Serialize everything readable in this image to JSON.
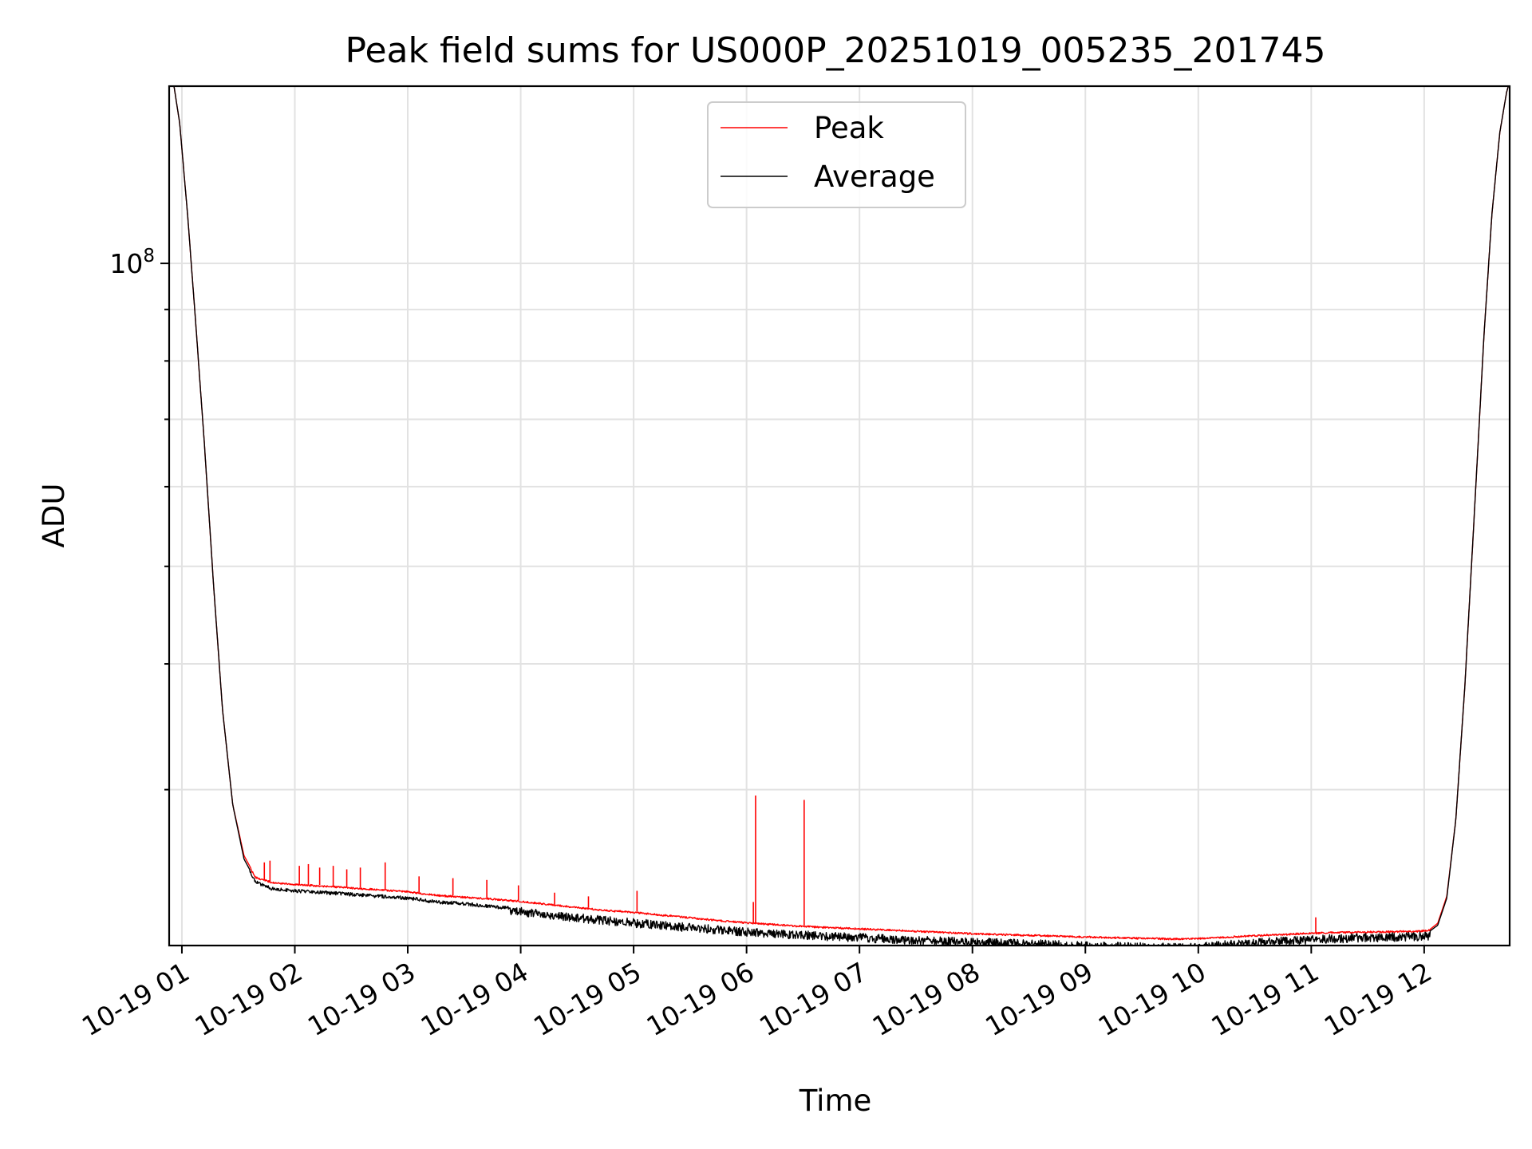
{
  "chart_data": {
    "type": "line",
    "title": "Peak field sums for US000P_20251019_005235_201745",
    "xlabel": "Time",
    "ylabel": "ADU",
    "yscale": "log",
    "ylim": [
      21000000,
      150000000
    ],
    "yticks": [
      {
        "value": 100000000,
        "base": "10",
        "exp": "8"
      }
    ],
    "yminor": [
      20000000,
      30000000,
      40000000,
      50000000,
      60000000,
      70000000,
      80000000,
      90000000
    ],
    "xlim": [
      0.8873,
      12.7569
    ],
    "xticks": [
      {
        "value": 1,
        "label": "10-19 01"
      },
      {
        "value": 2,
        "label": "10-19 02"
      },
      {
        "value": 3,
        "label": "10-19 03"
      },
      {
        "value": 4,
        "label": "10-19 04"
      },
      {
        "value": 5,
        "label": "10-19 05"
      },
      {
        "value": 6,
        "label": "10-19 06"
      },
      {
        "value": 7,
        "label": "10-19 07"
      },
      {
        "value": 8,
        "label": "10-19 08"
      },
      {
        "value": 9,
        "label": "10-19 09"
      },
      {
        "value": 10,
        "label": "10-19 10"
      },
      {
        "value": 11,
        "label": "10-19 11"
      },
      {
        "value": 12,
        "label": "10-19 12"
      }
    ],
    "grid": true,
    "legend": {
      "position": "top-center"
    },
    "series": [
      {
        "name": "Peak",
        "color": "#ff0000",
        "x": [
          0.89,
          0.93,
          0.98,
          1.05,
          1.12,
          1.2,
          1.28,
          1.36,
          1.45,
          1.55,
          1.65,
          1.8,
          2.0,
          2.25,
          2.5,
          2.75,
          3.0,
          3.25,
          3.5,
          3.75,
          3.95,
          4.2,
          4.5,
          4.75,
          5.0,
          5.25,
          5.5,
          5.75,
          6.0,
          6.25,
          6.5,
          6.75,
          7.0,
          7.25,
          7.5,
          7.75,
          8.0,
          8.25,
          8.5,
          8.75,
          9.0,
          9.25,
          9.5,
          9.75,
          9.85,
          10.0,
          10.25,
          10.5,
          10.75,
          11.0,
          11.25,
          11.5,
          11.75,
          11.95,
          12.05,
          12.12,
          12.2,
          12.28,
          12.36,
          12.45,
          12.53,
          12.6,
          12.67,
          12.73,
          12.76
        ],
        "y": [
          152000000,
          150000000,
          138000000,
          112000000,
          88000000,
          66000000,
          48000000,
          36000000,
          29000000,
          25800000,
          24600000,
          24300000,
          24200000,
          24100000,
          24000000,
          23900000,
          23800000,
          23600000,
          23500000,
          23400000,
          23300000,
          23150000,
          22950000,
          22800000,
          22700000,
          22560000,
          22420000,
          22280000,
          22160000,
          22070000,
          21980000,
          21920000,
          21860000,
          21800000,
          21740000,
          21680000,
          21620000,
          21580000,
          21540000,
          21500000,
          21460000,
          21420000,
          21390000,
          21360000,
          21350000,
          21380000,
          21450000,
          21520000,
          21580000,
          21640000,
          21680000,
          21700000,
          21720000,
          21740000,
          21780000,
          22100000,
          23500000,
          28000000,
          38000000,
          58000000,
          85000000,
          112000000,
          135000000,
          148000000,
          152000000
        ],
        "spikes": [
          {
            "x": 1.73,
            "y": 25400000
          },
          {
            "x": 1.78,
            "y": 25500000
          },
          {
            "x": 2.04,
            "y": 25200000
          },
          {
            "x": 2.12,
            "y": 25300000
          },
          {
            "x": 2.22,
            "y": 25100000
          },
          {
            "x": 2.34,
            "y": 25200000
          },
          {
            "x": 2.46,
            "y": 25000000
          },
          {
            "x": 2.58,
            "y": 25100000
          },
          {
            "x": 2.8,
            "y": 25400000
          },
          {
            "x": 3.1,
            "y": 24600000
          },
          {
            "x": 3.4,
            "y": 24500000
          },
          {
            "x": 3.7,
            "y": 24400000
          },
          {
            "x": 3.98,
            "y": 24100000
          },
          {
            "x": 4.3,
            "y": 23700000
          },
          {
            "x": 4.6,
            "y": 23500000
          },
          {
            "x": 5.03,
            "y": 23800000
          },
          {
            "x": 6.06,
            "y": 23200000
          },
          {
            "x": 6.08,
            "y": 29600000
          },
          {
            "x": 6.51,
            "y": 29300000
          },
          {
            "x": 11.04,
            "y": 22400000
          }
        ]
      },
      {
        "name": "Average",
        "color": "#000000",
        "x": [
          0.89,
          0.93,
          0.98,
          1.05,
          1.12,
          1.2,
          1.28,
          1.36,
          1.45,
          1.55,
          1.65,
          1.8,
          2.0,
          2.25,
          2.5,
          2.75,
          3.0,
          3.25,
          3.5,
          3.75,
          3.95,
          4.2,
          4.5,
          4.75,
          5.0,
          5.25,
          5.5,
          5.75,
          6.0,
          6.25,
          6.5,
          6.75,
          7.0,
          7.25,
          7.5,
          7.75,
          8.0,
          8.25,
          8.5,
          8.75,
          9.0,
          9.25,
          9.5,
          9.75,
          9.85,
          10.0,
          10.25,
          10.5,
          10.75,
          11.0,
          11.25,
          11.5,
          11.75,
          11.95,
          12.05,
          12.12,
          12.2,
          12.28,
          12.36,
          12.45,
          12.53,
          12.6,
          12.67,
          12.73,
          12.76
        ],
        "y": [
          152000000,
          150000000,
          138000000,
          112000000,
          88000000,
          66000000,
          48000000,
          36000000,
          29000000,
          25600000,
          24400000,
          24000000,
          23900000,
          23800000,
          23700000,
          23600000,
          23500000,
          23300000,
          23200000,
          23050000,
          22950000,
          22800000,
          22600000,
          22460000,
          22340000,
          22220000,
          22100000,
          21980000,
          21880000,
          21800000,
          21720000,
          21650000,
          21590000,
          21530000,
          21470000,
          21420000,
          21370000,
          21330000,
          21290000,
          21250000,
          21210000,
          21170000,
          21140000,
          21110000,
          21100000,
          21140000,
          21240000,
          21340000,
          21420000,
          21500000,
          21560000,
          21600000,
          21630000,
          21650000,
          21700000,
          22000000,
          23400000,
          28000000,
          38000000,
          58000000,
          85000000,
          112000000,
          135000000,
          148000000,
          152000000
        ]
      }
    ]
  }
}
